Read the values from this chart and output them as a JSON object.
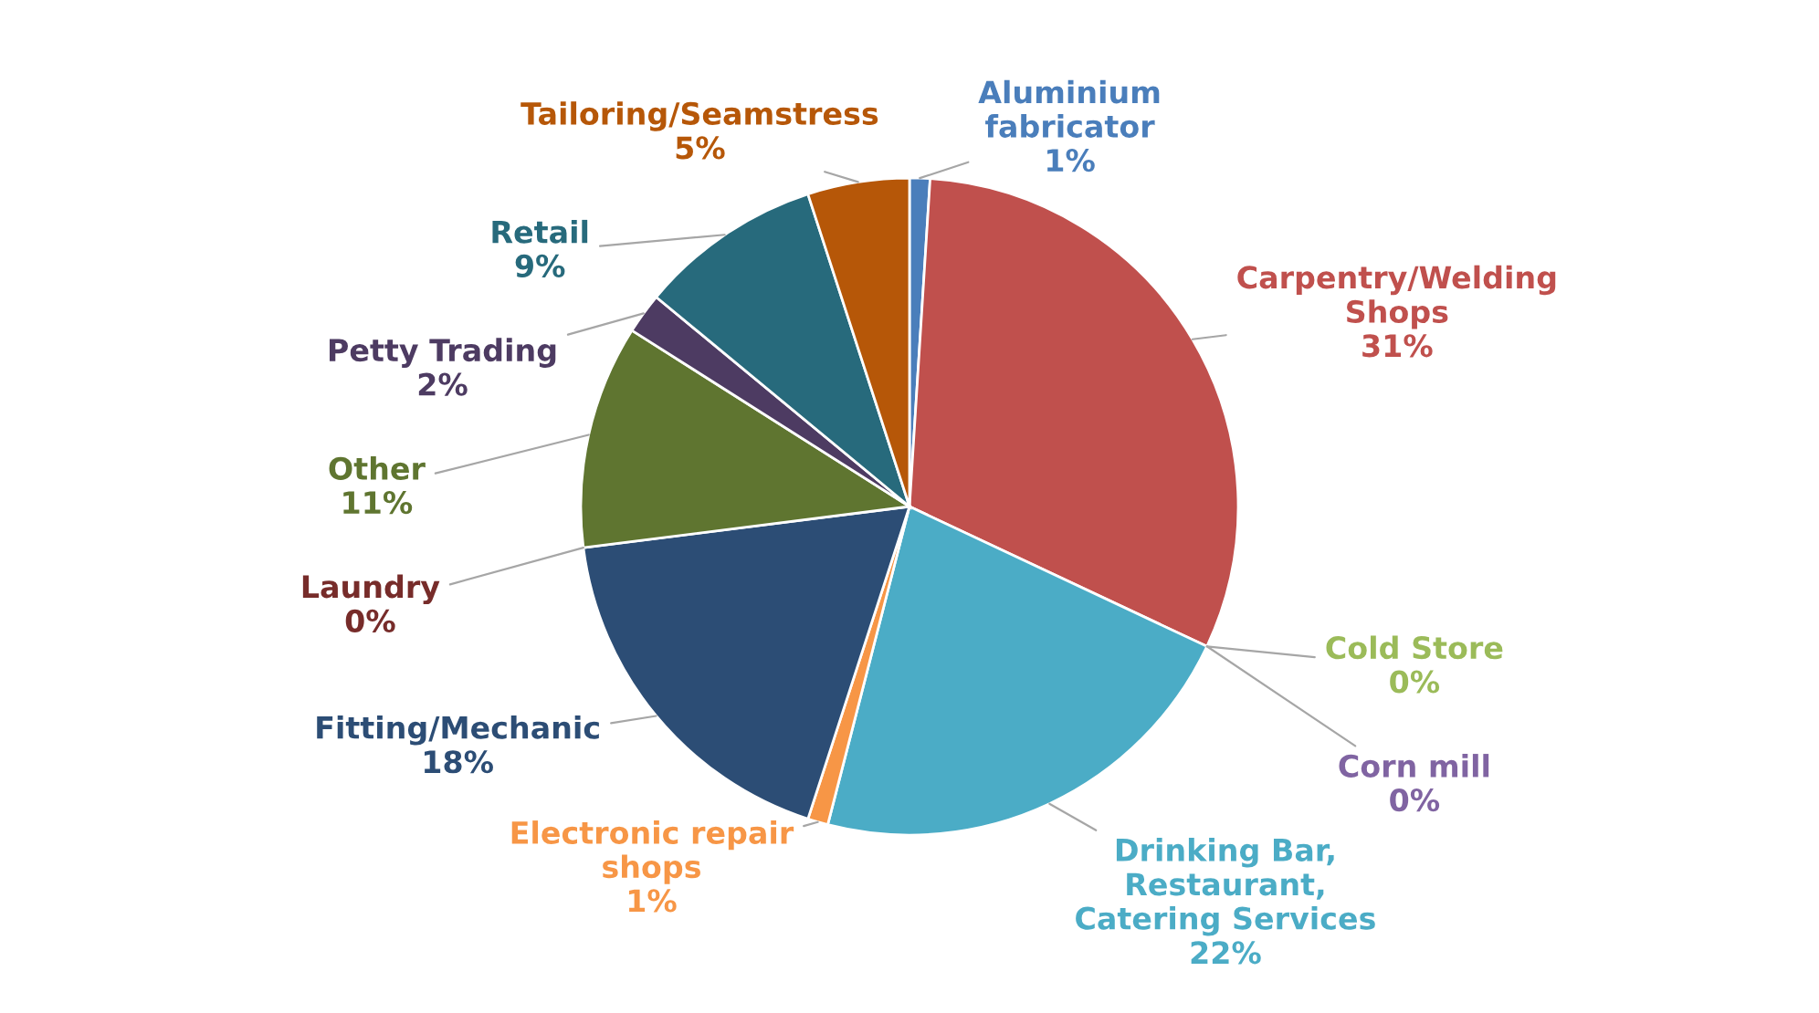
{
  "chart_data": {
    "type": "pie",
    "categories": [
      "Aluminium\nfabricator",
      "Carpentry/Welding\nShops",
      "Cold Store",
      "Corn mill",
      "Drinking Bar,\nRestaurant,\nCatering Services",
      "Electronic repair\nshops",
      "Fitting/Mechanic",
      "Laundry",
      "Other",
      "Petty Trading",
      "Retail",
      "Tailoring/Seamstress"
    ],
    "values": [
      1,
      31,
      0,
      0,
      22,
      1,
      18,
      0,
      11,
      2,
      9,
      5
    ],
    "value_labels": [
      "1%",
      "31%",
      "0%",
      "0%",
      "22%",
      "1%",
      "18%",
      "0%",
      "11%",
      "2%",
      "9%",
      "5%"
    ],
    "colors": [
      "#4a7ebb",
      "#c0504d",
      "#9bbb59",
      "#8064a2",
      "#4bacc6",
      "#f79646",
      "#2c4d75",
      "#772c2a",
      "#5f7530",
      "#4d3b62",
      "#276a7c",
      "#b65708"
    ]
  }
}
